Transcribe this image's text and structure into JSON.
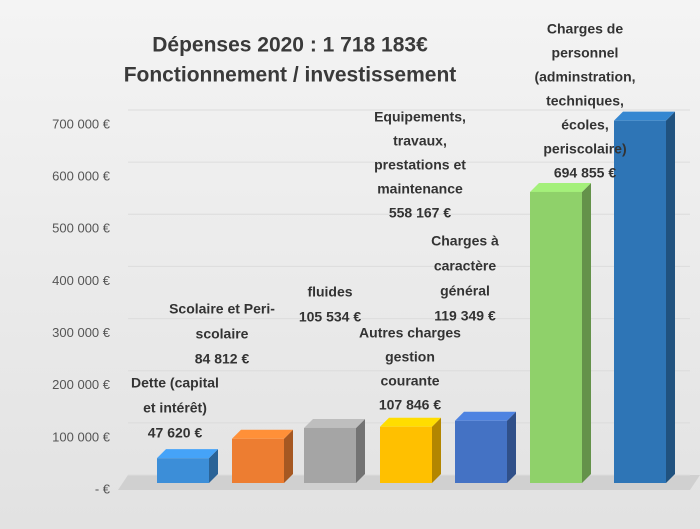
{
  "chart_data": {
    "type": "bar3d",
    "title": [
      "Dépenses 2020 : 1 718 183€",
      "Fonctionnement / investissement"
    ],
    "categories": [
      [
        "Dette (capital",
        "et intérêt)"
      ],
      [
        "Scolaire et Peri-",
        "scolaire"
      ],
      [
        "fluides"
      ],
      [
        "Autres charges",
        "gestion",
        "courante"
      ],
      [
        "Charges à",
        "caractère",
        "général"
      ],
      [
        "Equipements,",
        "travaux,",
        "prestations et",
        "maintenance"
      ],
      [
        "Charges de",
        "personnel",
        "(adminstration,",
        "techniques,",
        "écoles,",
        "periscolaire)"
      ]
    ],
    "values": [
      47620,
      84812,
      105534,
      107846,
      119349,
      558167,
      694855
    ],
    "value_labels": [
      "47 620 €",
      "84 812 €",
      "105 534 €",
      "107 846 €",
      "119 349 €",
      "558 167 €",
      "694 855 €"
    ],
    "colors": [
      "#3c8ed8",
      "#ed7d31",
      "#a5a5a5",
      "#ffc000",
      "#4472c4",
      "#8fd16a",
      "#2e75b6"
    ],
    "ylim": [
      0,
      700000
    ],
    "yticks": [
      {
        "value": 0,
        "label": "-   €"
      },
      {
        "value": 100000,
        "label": "100 000 €"
      },
      {
        "value": 200000,
        "label": "200 000 €"
      },
      {
        "value": 300000,
        "label": "300 000 €"
      },
      {
        "value": 400000,
        "label": "400 000 €"
      },
      {
        "value": 500000,
        "label": "500 000 €"
      },
      {
        "value": 600000,
        "label": "600 000 €"
      },
      {
        "value": 700000,
        "label": "700 000 €"
      }
    ],
    "grid": true
  }
}
